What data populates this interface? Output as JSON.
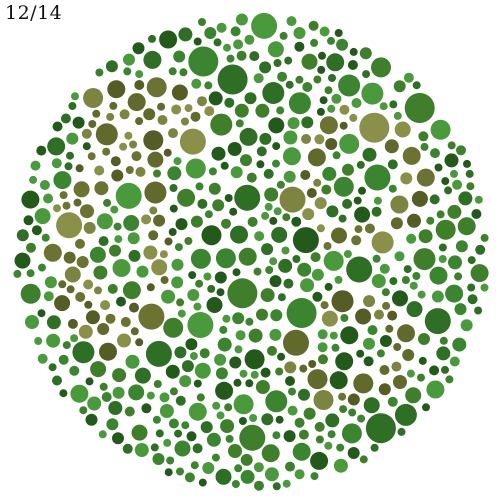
{
  "progress": {
    "label": "12/14",
    "current": 12,
    "total": 14
  },
  "plate": {
    "type": "pseudoisochromatic-test-plate",
    "background_palette": [
      "#2f6e25",
      "#3b8530",
      "#4a9a3d",
      "#235a1c",
      "#3f7f2c"
    ],
    "figure_palette": [
      "#6b7232",
      "#7d8441",
      "#565c25",
      "#8a8f4a",
      "#62692d"
    ]
  }
}
